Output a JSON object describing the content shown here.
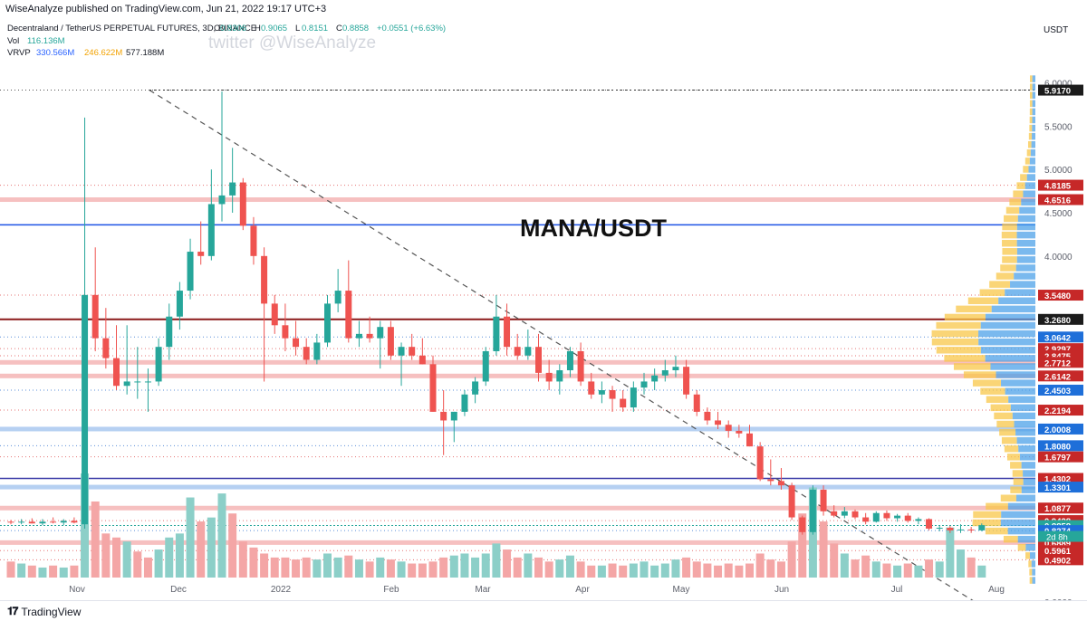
{
  "header": {
    "published": "WiseAnalyze published on TradingView.com, Jun 21, 2022 19:17 UTC+3"
  },
  "legend": {
    "symbol": "Decentraland / TetherUS PERPETUAL FUTURES, 3D, BINANCE",
    "ohlc": [
      {
        "k": "O",
        "v": "0.8306"
      },
      {
        "k": "H",
        "v": "0.9065"
      },
      {
        "k": "L",
        "v": "0.8151"
      },
      {
        "k": "C",
        "v": "0.8858"
      }
    ],
    "change": "+0.0551 (+6.63%)",
    "vol_label": "Vol",
    "vol_value": "116.136M",
    "vrvp_label": "VRVP",
    "vrvp_up": "330.566M",
    "vrvp_down": "246.622M",
    "vrvp_total": "577.188M"
  },
  "watermark": "twitter @WiseAnalyze",
  "chart_data": {
    "type": "candlestick",
    "title": "MANA/USDT",
    "currency": "USDT",
    "y_range": [
      -0.05,
      6.15
    ],
    "y_ticks": [
      "6.0000",
      "5.5000",
      "5.0000",
      "4.5000",
      "4.0000",
      "0.0000"
    ],
    "x_ticks": [
      "Nov",
      "Dec",
      "2022",
      "Feb",
      "Mar",
      "Apr",
      "May",
      "Jun",
      "Jul",
      "Aug"
    ],
    "countdown": "2d 8h",
    "candles": [
      [
        0.93,
        0.95,
        0.9,
        0.92
      ],
      [
        0.92,
        0.96,
        0.9,
        0.93
      ],
      [
        0.93,
        0.97,
        0.91,
        0.91
      ],
      [
        0.91,
        0.96,
        0.89,
        0.93
      ],
      [
        0.93,
        0.98,
        0.91,
        0.92
      ],
      [
        0.92,
        0.96,
        0.89,
        0.94
      ],
      [
        0.94,
        0.98,
        0.91,
        0.92
      ],
      [
        0.9,
        5.6,
        0.85,
        3.55
      ],
      [
        3.55,
        4.1,
        2.9,
        3.05
      ],
      [
        3.05,
        3.4,
        2.7,
        2.82
      ],
      [
        2.82,
        3.2,
        2.45,
        2.5
      ],
      [
        2.5,
        3.2,
        2.4,
        2.55
      ],
      [
        2.55,
        2.95,
        2.35,
        2.55
      ],
      [
        2.55,
        2.7,
        2.2,
        2.55
      ],
      [
        2.55,
        3.05,
        2.5,
        2.95
      ],
      [
        2.95,
        3.45,
        2.8,
        3.3
      ],
      [
        3.3,
        3.7,
        3.15,
        3.6
      ],
      [
        3.6,
        4.2,
        3.5,
        4.05
      ],
      [
        4.05,
        4.4,
        3.9,
        4.0
      ],
      [
        4.0,
        5.0,
        3.95,
        4.6
      ],
      [
        4.6,
        5.9,
        4.4,
        4.7
      ],
      [
        4.7,
        5.25,
        4.5,
        4.85
      ],
      [
        4.85,
        4.9,
        4.3,
        4.35
      ],
      [
        4.35,
        4.45,
        3.9,
        4.0
      ],
      [
        4.0,
        4.1,
        2.55,
        3.45
      ],
      [
        3.45,
        3.55,
        3.1,
        3.2
      ],
      [
        3.2,
        3.45,
        2.9,
        3.05
      ],
      [
        3.05,
        3.25,
        2.85,
        2.95
      ],
      [
        2.95,
        3.05,
        2.75,
        2.8
      ],
      [
        2.8,
        3.1,
        2.75,
        3.0
      ],
      [
        3.0,
        3.55,
        2.95,
        3.45
      ],
      [
        3.45,
        3.85,
        3.35,
        3.6
      ],
      [
        3.6,
        3.95,
        3.0,
        3.05
      ],
      [
        3.05,
        3.25,
        2.95,
        3.1
      ],
      [
        3.1,
        3.3,
        3.0,
        3.05
      ],
      [
        3.05,
        3.25,
        2.7,
        3.18
      ],
      [
        3.18,
        3.25,
        2.8,
        2.85
      ],
      [
        2.85,
        3.0,
        2.5,
        2.95
      ],
      [
        2.95,
        3.1,
        2.8,
        2.85
      ],
      [
        2.85,
        3.05,
        2.75,
        2.75
      ],
      [
        2.75,
        2.85,
        2.2,
        2.2
      ],
      [
        2.2,
        2.45,
        1.7,
        2.1
      ],
      [
        2.1,
        2.2,
        1.85,
        2.2
      ],
      [
        2.2,
        2.45,
        2.15,
        2.4
      ],
      [
        2.4,
        2.6,
        2.3,
        2.55
      ],
      [
        2.55,
        2.95,
        2.5,
        2.9
      ],
      [
        2.9,
        3.55,
        2.85,
        3.3
      ],
      [
        3.3,
        3.45,
        2.85,
        2.95
      ],
      [
        2.95,
        3.1,
        2.8,
        2.85
      ],
      [
        2.85,
        3.15,
        2.8,
        2.95
      ],
      [
        2.95,
        3.1,
        2.55,
        2.65
      ],
      [
        2.65,
        2.8,
        2.45,
        2.55
      ],
      [
        2.55,
        2.75,
        2.4,
        2.68
      ],
      [
        2.68,
        2.95,
        2.6,
        2.9
      ],
      [
        2.9,
        3.0,
        2.5,
        2.55
      ],
      [
        2.55,
        2.65,
        2.35,
        2.4
      ],
      [
        2.4,
        2.55,
        2.3,
        2.45
      ],
      [
        2.45,
        2.5,
        2.2,
        2.35
      ],
      [
        2.35,
        2.45,
        2.2,
        2.25
      ],
      [
        2.25,
        2.55,
        2.2,
        2.48
      ],
      [
        2.48,
        2.65,
        2.4,
        2.55
      ],
      [
        2.55,
        2.7,
        2.45,
        2.62
      ],
      [
        2.62,
        2.8,
        2.55,
        2.68
      ],
      [
        2.68,
        2.85,
        2.6,
        2.72
      ],
      [
        2.72,
        2.8,
        2.35,
        2.4
      ],
      [
        2.4,
        2.45,
        2.15,
        2.2
      ],
      [
        2.2,
        2.25,
        2.05,
        2.1
      ],
      [
        2.1,
        2.2,
        2.0,
        2.05
      ],
      [
        2.05,
        2.1,
        1.9,
        1.98
      ],
      [
        1.98,
        2.05,
        1.9,
        1.95
      ],
      [
        1.95,
        2.05,
        1.8,
        1.8
      ],
      [
        1.8,
        1.85,
        1.4,
        1.42
      ],
      [
        1.42,
        1.65,
        1.35,
        1.4
      ],
      [
        1.4,
        1.55,
        1.3,
        1.35
      ],
      [
        1.35,
        1.38,
        0.95,
        0.98
      ],
      [
        0.98,
        1.0,
        0.78,
        0.81
      ],
      [
        0.81,
        1.35,
        0.78,
        1.3
      ],
      [
        1.3,
        1.35,
        1.0,
        1.05
      ],
      [
        1.05,
        1.12,
        0.98,
        1.0
      ],
      [
        1.0,
        1.1,
        0.97,
        1.05
      ],
      [
        1.05,
        1.07,
        0.96,
        0.98
      ],
      [
        0.98,
        1.03,
        0.9,
        0.93
      ],
      [
        0.93,
        1.05,
        0.92,
        1.03
      ],
      [
        1.03,
        1.06,
        0.94,
        0.97
      ],
      [
        0.97,
        1.02,
        0.93,
        1.0
      ],
      [
        1.0,
        1.03,
        0.92,
        0.94
      ],
      [
        0.94,
        0.98,
        0.9,
        0.96
      ],
      [
        0.96,
        0.97,
        0.83,
        0.85
      ],
      [
        0.85,
        0.88,
        0.82,
        0.86
      ],
      [
        0.86,
        0.88,
        0.8,
        0.83
      ],
      [
        0.83,
        0.9,
        0.8,
        0.84
      ],
      [
        0.84,
        0.87,
        0.8,
        0.83
      ],
      [
        0.83,
        0.91,
        0.82,
        0.89
      ]
    ],
    "volume": [
      [
        0.08,
        0
      ],
      [
        0.07,
        1
      ],
      [
        0.06,
        0
      ],
      [
        0.05,
        1
      ],
      [
        0.06,
        0
      ],
      [
        0.05,
        1
      ],
      [
        0.06,
        0
      ],
      [
        0.52,
        1
      ],
      [
        0.38,
        0
      ],
      [
        0.22,
        0
      ],
      [
        0.2,
        0
      ],
      [
        0.18,
        1
      ],
      [
        0.13,
        0
      ],
      [
        0.1,
        0
      ],
      [
        0.14,
        1
      ],
      [
        0.2,
        1
      ],
      [
        0.22,
        1
      ],
      [
        0.4,
        1
      ],
      [
        0.28,
        0
      ],
      [
        0.3,
        1
      ],
      [
        0.42,
        1
      ],
      [
        0.32,
        0
      ],
      [
        0.18,
        0
      ],
      [
        0.15,
        0
      ],
      [
        0.12,
        0
      ],
      [
        0.1,
        0
      ],
      [
        0.1,
        0
      ],
      [
        0.09,
        0
      ],
      [
        0.1,
        0
      ],
      [
        0.09,
        1
      ],
      [
        0.12,
        1
      ],
      [
        0.1,
        1
      ],
      [
        0.11,
        0
      ],
      [
        0.09,
        1
      ],
      [
        0.08,
        0
      ],
      [
        0.1,
        1
      ],
      [
        0.09,
        0
      ],
      [
        0.08,
        1
      ],
      [
        0.07,
        0
      ],
      [
        0.07,
        0
      ],
      [
        0.08,
        0
      ],
      [
        0.1,
        0
      ],
      [
        0.11,
        1
      ],
      [
        0.12,
        1
      ],
      [
        0.1,
        1
      ],
      [
        0.12,
        1
      ],
      [
        0.17,
        1
      ],
      [
        0.14,
        0
      ],
      [
        0.1,
        0
      ],
      [
        0.12,
        1
      ],
      [
        0.1,
        0
      ],
      [
        0.08,
        0
      ],
      [
        0.09,
        1
      ],
      [
        0.11,
        1
      ],
      [
        0.08,
        0
      ],
      [
        0.06,
        0
      ],
      [
        0.06,
        1
      ],
      [
        0.07,
        0
      ],
      [
        0.06,
        0
      ],
      [
        0.07,
        1
      ],
      [
        0.08,
        1
      ],
      [
        0.06,
        1
      ],
      [
        0.07,
        1
      ],
      [
        0.09,
        1
      ],
      [
        0.1,
        0
      ],
      [
        0.08,
        0
      ],
      [
        0.07,
        0
      ],
      [
        0.06,
        0
      ],
      [
        0.07,
        0
      ],
      [
        0.06,
        0
      ],
      [
        0.07,
        0
      ],
      [
        0.12,
        0
      ],
      [
        0.09,
        0
      ],
      [
        0.08,
        0
      ],
      [
        0.18,
        0
      ],
      [
        0.32,
        0
      ],
      [
        0.45,
        1
      ],
      [
        0.28,
        0
      ],
      [
        0.17,
        0
      ],
      [
        0.12,
        1
      ],
      [
        0.09,
        0
      ],
      [
        0.11,
        0
      ],
      [
        0.08,
        1
      ],
      [
        0.07,
        0
      ],
      [
        0.06,
        1
      ],
      [
        0.07,
        0
      ],
      [
        0.06,
        1
      ],
      [
        0.09,
        0
      ],
      [
        0.08,
        1
      ],
      [
        0.25,
        1
      ],
      [
        0.14,
        1
      ],
      [
        0.1,
        0
      ],
      [
        0.06,
        1
      ]
    ],
    "price_labels": [
      {
        "value": "5.9170",
        "type": "dark"
      },
      {
        "value": "4.8185",
        "type": "red"
      },
      {
        "value": "4.6516",
        "type": "red"
      },
      {
        "value": "3.5480",
        "type": "red"
      },
      {
        "value": "3.2680",
        "type": "dark"
      },
      {
        "value": "3.0642",
        "type": "blue"
      },
      {
        "value": "2.9297",
        "type": "red"
      },
      {
        "value": "2.8475",
        "type": "red"
      },
      {
        "value": "2.7712",
        "type": "red"
      },
      {
        "value": "2.6142",
        "type": "red"
      },
      {
        "value": "2.4503",
        "type": "blue"
      },
      {
        "value": "2.2194",
        "type": "red"
      },
      {
        "value": "2.0008",
        "type": "blue"
      },
      {
        "value": "1.8080",
        "type": "blue"
      },
      {
        "value": "1.6797",
        "type": "red"
      },
      {
        "value": "1.4302",
        "type": "red"
      },
      {
        "value": "1.3301",
        "type": "blue"
      },
      {
        "value": "1.0877",
        "type": "red"
      },
      {
        "value": "0.9428",
        "type": "red"
      },
      {
        "value": "0.8858",
        "type": "green"
      },
      {
        "value": "0.8274",
        "type": "blue"
      },
      {
        "value": "0.6889",
        "type": "red"
      },
      {
        "value": "0.5961",
        "type": "red"
      },
      {
        "value": "0.4902",
        "type": "red"
      }
    ]
  },
  "colors": {
    "up": "#26a69a",
    "down": "#ef5350",
    "vol_up": "#8ccfc8",
    "vol_down": "#f4a6a6",
    "support_band": "#f4b5b5",
    "resist_blue": "#1e53e5",
    "dark_red": "#8b1a1a",
    "vp_blue": "#4ea1e8",
    "vp_yellow": "#f8c74a"
  },
  "footer": {
    "logo_text": "TradingView"
  }
}
